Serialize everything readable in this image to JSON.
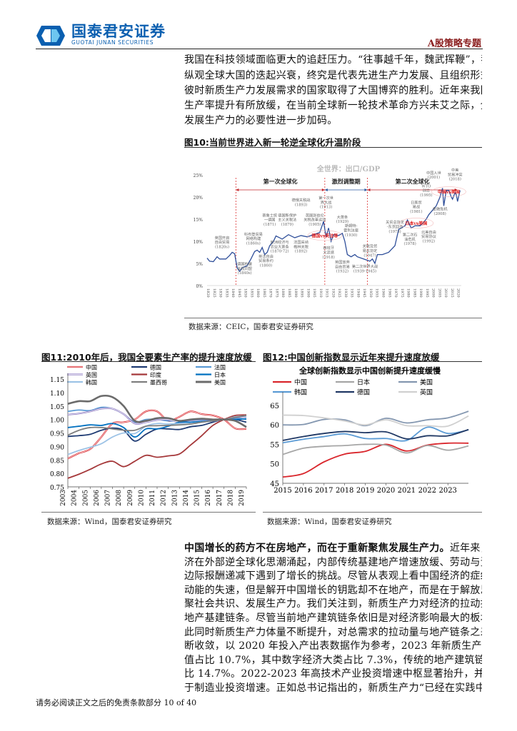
{
  "header": {
    "logo_cn": "国泰君安证券",
    "logo_en": "GUOTAI JUNAN SECURITIES",
    "report_type": "A股策略专题",
    "brand_color": "#0a5fb0"
  },
  "intro_lines": [
    "我国在科技领域面临更大的追赶压力。“往事越千年，魏武挥鞭”，我们认为，",
    "纵观全球大国的迭起兴衰，终究是代表先进生产力发展、且组织形式更适应",
    "彼时新质生产力发展需求的国家取得了大国博弈的胜利。近年来我国全要素",
    "生产率提升有所放缓，在当前全球新一轮技术革命方兴未艾之际，全面聚焦",
    "发展生产力的必要性进一步加码。"
  ],
  "fig10": {
    "title": "图10:当前世界进入新一轮逆全球化升温阶段",
    "source": "数据来源：CEIC，国泰君安证券研究"
  },
  "fig11": {
    "title": "图11:2010年后，我国全要素生产率的提升速度放缓",
    "source": "数据来源：Wind，国泰君安证券研究"
  },
  "fig12": {
    "title": "图12:中国创新指数显示近年来提升速度放缓",
    "source": "数据来源：Wind，国泰君安证券研究"
  },
  "chart_data": [
    {
      "type": "line",
      "title": "全世界：出口/GDP",
      "ylim": [
        0,
        25
      ],
      "yticks": [
        "0%",
        "5%",
        "10%",
        "15%",
        "20%",
        "25%"
      ],
      "xlim": [
        1820,
        2023
      ],
      "xticks": [
        1820,
        1825,
        1830,
        1835,
        1840,
        1845,
        1850,
        1855,
        1860,
        1865,
        1870,
        1875,
        1880,
        1885,
        1890,
        1895,
        1900,
        1905,
        1910,
        1915,
        1920,
        1925,
        1930,
        1935,
        1940,
        1945,
        1950,
        1955,
        1960,
        1965,
        1970,
        1975,
        1980,
        1985,
        1990,
        1995,
        2000,
        2005,
        2010,
        2015,
        2020
      ],
      "x": [
        1820,
        1822,
        1825,
        1828,
        1830,
        1835,
        1838,
        1840,
        1842,
        1844,
        1846,
        1848,
        1852,
        1855,
        1858,
        1860,
        1862,
        1864,
        1866,
        1868,
        1870,
        1873,
        1875,
        1880,
        1885,
        1890,
        1895,
        1900,
        1905,
        1910,
        1913,
        1915,
        1917,
        1919,
        1921,
        1925,
        1928,
        1930,
        1932,
        1935,
        1938,
        1940,
        1945,
        1950,
        1952,
        1954,
        1956,
        1960,
        1965,
        1970,
        1973,
        1975,
        1978,
        1980,
        1983,
        1986,
        1990,
        1992,
        1995,
        1997,
        2000,
        2003,
        2006,
        2008,
        2009,
        2011,
        2013,
        2015,
        2016,
        2018,
        2019,
        2020,
        2022
      ],
      "y": [
        6.2,
        5.5,
        5.4,
        6.5,
        6,
        6,
        6.8,
        7.5,
        7.2,
        4,
        3.2,
        4,
        4.5,
        6,
        7.7,
        8,
        7.5,
        8.6,
        7,
        7.5,
        9,
        10,
        11.2,
        10.5,
        11.5,
        10.8,
        11.3,
        11,
        11.5,
        12,
        14.5,
        11,
        13,
        10,
        11.5,
        11.3,
        11.8,
        10,
        7,
        6.5,
        7,
        6.5,
        6,
        5.5,
        6,
        5,
        7,
        7,
        7.5,
        9,
        12.7,
        13,
        13.5,
        14.8,
        13,
        13.5,
        13.5,
        14,
        15,
        16,
        17,
        18,
        20,
        22,
        18,
        21.5,
        21.5,
        20,
        19.5,
        21,
        20.5,
        19,
        21.5
      ],
      "periods": [
        {
          "label": "第一次全球化",
          "from": 1843,
          "to": 1914
        },
        {
          "label": "激烈调整期",
          "from": 1914,
          "to": 1948
        },
        {
          "label": "第二次全球化",
          "from": 1948,
          "to": 2020
        }
      ],
      "period_label_color": "#c0282d",
      "adjust_color": "#2c5aa0",
      "series_color": "#2f4f9a",
      "annotations": [
        {
          "text": [
            "英国开启",
            "自由贸易",
            "(1820s)"
          ],
          "x": 1832,
          "y": 10.5
        },
        {
          "text": [
            "德国构建",
            "关税同盟",
            "(1840s)"
          ],
          "x": 1850,
          "y": 4.6
        },
        {
          "text": [
            "科布登贸易",
            "网络构建",
            "(1860s)"
          ],
          "x": 1857,
          "y": 11.3
        },
        {
          "text": [
            "英法自由",
            "贸易条约",
            "(1860)"
          ],
          "x": 1867,
          "y": 6.3
        },
        {
          "text": [
            "普鲁士统",
            "一德国",
            "(1871)"
          ],
          "x": 1870,
          "y": 15.6
        },
        {
          "text": [
            "德国新保护",
            "主义关税法",
            "(1879)"
          ],
          "x": 1884,
          "y": 15.6
        },
        {
          "text": [
            "欧洲经济与",
            "农业大萧条",
            "(1870-72)"
          ],
          "x": 1878,
          "y": 9.5
        },
        {
          "text": [
            "法国采纳",
            "梅林关税",
            "(1892)"
          ],
          "x": 1895,
          "y": 9.5
        },
        {
          "text": [
            "德俄关税战",
            "(1893)"
          ],
          "x": 1895,
          "y": 19
        },
        {
          "text": [
            "英国张伯伦",
            "关税改革运动",
            "(1905)"
          ],
          "x": 1906,
          "y": 15.6
        },
        {
          "text": [
            "第一次世",
            "界大战",
            "(1913)"
          ],
          "x": 1915,
          "y": 19.5
        },
        {
          "text": [
            "西班牙",
            "大流感",
            "(1918)"
          ],
          "x": 1917,
          "y": 8.2
        },
        {
          "text": [
            "大萧条",
            "(1929)"
          ],
          "x": 1928,
          "y": 15.2
        },
        {
          "text": [
            "斯姆特-",
            "霍利法案",
            "(1930)"
          ],
          "x": 1935,
          "y": 13.2
        },
        {
          "text": [
            "英国放弃",
            "自由贸易",
            "(1932)"
          ],
          "x": 1928,
          "y": 5
        },
        {
          "text": [
            "第二次世界大战",
            "(1939-1945)"
          ],
          "x": 1946,
          "y": 4
        },
        {
          "text": [
            "关税及贸",
            "易总协定",
            "(1947)"
          ],
          "x": 1950,
          "y": 8.6
        },
        {
          "text": [
            "关贸总协定",
            "-东京回合",
            "(1973)"
          ],
          "x": 1970,
          "y": 14
        },
        {
          "text": [
            "第二次石",
            "油危机",
            "(1978)"
          ],
          "x": 1982,
          "y": 11.2
        },
        {
          "text": [
            "日美贸",
            "易战",
            "(1981)"
          ],
          "x": 1987,
          "y": 18.5
        },
        {
          "text": [
            "北美自由",
            "贸易协议",
            "(1992)"
          ],
          "x": 1997,
          "y": 11.8
        },
        {
          "text": [
            "WTO",
            "创立",
            "(1995)"
          ],
          "x": 1995,
          "y": 22.2
        },
        {
          "text": [
            "中国入世",
            "(2001)"
          ],
          "x": 2001,
          "y": 25.2
        },
        {
          "text": [
            "金融危机",
            "(2008)"
          ],
          "x": 2006,
          "y": 17
        },
        {
          "text": [
            "中美",
            "贸易冲突",
            "(2018)"
          ],
          "x": 2018,
          "y": 25.8
        }
      ],
      "highlights": [
        {
          "text": "德国vs英法等",
          "x": 1914,
          "y": 11.3
        },
        {
          "text": "日本vs美国",
          "x": 1987,
          "y": 14.1
        },
        {
          "text": "中国vs美国",
          "x": 2013,
          "y": 21.2
        }
      ]
    },
    {
      "type": "line",
      "ylim": [
        0.75,
        1.15
      ],
      "yticks": [
        "0.75",
        "0.80",
        "0.85",
        "0.90",
        "0.95",
        "1.00",
        "1.05",
        "1.10",
        "1.15"
      ],
      "categories": [
        "2003",
        "2004",
        "2005",
        "2006",
        "2007",
        "2008",
        "2009",
        "2010",
        "2011",
        "2012",
        "2013",
        "2014",
        "2015",
        "2016",
        "2017",
        "2018",
        "2019"
      ],
      "series": [
        {
          "name": "中国",
          "color": "#d9262c",
          "style": "outline",
          "values": [
            0.855,
            0.875,
            0.89,
            0.935,
            0.985,
            0.99,
            1.0,
            1.03,
            1.03,
            0.995,
            1.01,
            1.03,
            1.02,
            1.015,
            1.0,
            0.967,
            0.965
          ]
        },
        {
          "name": "德国",
          "color": "#1f3b73",
          "values": [
            0.937,
            0.94,
            0.945,
            0.96,
            0.968,
            0.96,
            0.92,
            0.945,
            0.965,
            0.965,
            0.963,
            0.973,
            0.978,
            0.99,
            1.0,
            1.0,
            0.99
          ]
        },
        {
          "name": "法国",
          "color": "#5b9bd5",
          "values": [
            1.03,
            1.035,
            1.033,
            1.045,
            1.04,
            1.02,
            0.99,
            1.0,
            1.0,
            0.995,
            0.995,
            0.997,
            0.998,
            0.998,
            1.0,
            1.005,
            1.0
          ]
        },
        {
          "name": "英国",
          "color": "#8e7cc3",
          "style": "outline",
          "values": [
            1.018,
            1.022,
            1.03,
            1.04,
            1.04,
            1.02,
            0.985,
            0.99,
            0.998,
            1.0,
            0.99,
            0.993,
            0.995,
            0.995,
            1.0,
            1.008,
            1.01
          ]
        },
        {
          "name": "印度",
          "color": "#a5383a",
          "values": [
            0.782,
            0.797,
            0.815,
            0.835,
            0.845,
            0.825,
            0.845,
            0.867,
            0.86,
            0.865,
            0.872,
            0.905,
            0.94,
            0.978,
            1.0,
            1.015,
            1.017
          ]
        },
        {
          "name": "日本",
          "color": "#0070c0",
          "values": [
            0.97,
            0.975,
            0.98,
            0.978,
            0.985,
            0.97,
            0.935,
            0.965,
            0.965,
            0.975,
            0.99,
            0.99,
            0.993,
            0.995,
            1.0,
            1.0,
            1.003
          ]
        },
        {
          "name": "韩国",
          "color": "#9dc3e6",
          "values": [
            0.87,
            0.885,
            0.897,
            0.91,
            0.935,
            0.95,
            0.948,
            0.975,
            0.985,
            0.983,
            0.985,
            0.985,
            0.99,
            0.995,
            1.0,
            1.01,
            1.013
          ]
        },
        {
          "name": "墨西哥",
          "color": "#7f7f7f",
          "values": [
            0.942,
            0.96,
            0.97,
            0.97,
            0.965,
            0.96,
            0.96,
            0.975,
            0.977,
            0.978,
            0.98,
            0.983,
            0.99,
            0.995,
            1.0,
            1.008,
            1.015
          ]
        },
        {
          "name": "美国",
          "color": "#6b6b6b",
          "style": "thick",
          "values": [
            1.058,
            1.068,
            1.068,
            1.087,
            1.083,
            1.05,
            0.995,
            0.995,
            1.005,
            1.005,
            0.995,
            1.0,
            1.003,
            1.0,
            1.0,
            0.995,
            0.972
          ]
        }
      ]
    },
    {
      "type": "line",
      "title": "全球创新指数显示中国创新提升速度缓慢",
      "ylim": [
        45,
        67
      ],
      "yticks": [
        "45",
        "50",
        "55",
        "60",
        "65"
      ],
      "categories": [
        "2015",
        "2016",
        "2017",
        "2018",
        "2019",
        "2020",
        "2021",
        "2022",
        "2023"
      ],
      "x": [
        2015,
        2016,
        2017,
        2018,
        2019,
        2020,
        2021,
        2022,
        2023,
        2024
      ],
      "series": [
        {
          "name": "中国",
          "color": "#d9262c",
          "values": [
            46.6,
            47.5,
            50.5,
            52.5,
            53.2,
            55,
            53.3,
            54.8,
            55.3,
            55.3
          ]
        },
        {
          "name": "日本",
          "color": "#a6a6a6",
          "values": [
            52.4,
            54,
            54.5,
            54.7,
            55,
            54.8,
            52.8,
            54.7,
            53.5,
            54.6
          ]
        },
        {
          "name": "美国",
          "color": "#8497b0",
          "values": [
            60,
            60.1,
            61.4,
            61.3,
            59.8,
            61.7,
            60.5,
            61.3,
            61.8,
            63.5
          ]
        },
        {
          "name": "韩国",
          "color": "#5b9bd5",
          "values": [
            55.4,
            56.3,
            57,
            57.7,
            56.5,
            56.5,
            56,
            59.4,
            57.8,
            58.7
          ]
        },
        {
          "name": "德国",
          "color": "#203864",
          "values": [
            56,
            57,
            57.8,
            58.3,
            58,
            58.2,
            56.4,
            57.2,
            57.2,
            58.8
          ]
        },
        {
          "name": "英国",
          "color": "#d0d0d0",
          "values": [
            62.5,
            62.4,
            61.8,
            61,
            60,
            61.3,
            59.8,
            59.8,
            59.7,
            62.3
          ]
        }
      ]
    }
  ],
  "body_lines": [
    {
      "bold": "中国增长的药方不在房地产，而在于重新聚焦发展生产力。",
      "text": "近年来，中国经"
    },
    {
      "text": "济在外部逆全球化思潮涌起，内部传统基建地产增速放缓、劳动与资本规模"
    },
    {
      "text": "边际报酬递减下遇到了增长的挑战。尽管从表观上看中国经济的症结在地产"
    },
    {
      "text": "动能的失速，但是解开中国增长的钥匙却不在地产，而是在于解放思想、凝"
    },
    {
      "text": "聚社会共识、发展生产力。我们关注到，新质生产力对经济的拉动接近传统"
    },
    {
      "text": "地产基建链条。尽管当前地产建筑链条依旧是对经济影响最大的板块，但与"
    },
    {
      "text": "此同时新质生产力体量不断提升，对总需求的拉动量与地产链条之差正在不"
    },
    {
      "text": "断收敛，以 2020 年投入产出表数据作为参考，2023 年新质生产力行业增加"
    },
    {
      "text": "值占比 10.7%，其中数字经济大类占比 7.3%，传统的地产建筑链条增加值占"
    },
    {
      "text": "比 14.7%。2022-2023 年高技术产业投资增速中枢显著抬升，并开始长期高"
    },
    {
      "text": "于制造业投资增速。正如总书记指出的，新质生产力“已经在实践中形成并"
    }
  ],
  "footer": {
    "disclaimer": "请务必阅读正文之后的免责条款部分",
    "page": "10 of 40"
  }
}
